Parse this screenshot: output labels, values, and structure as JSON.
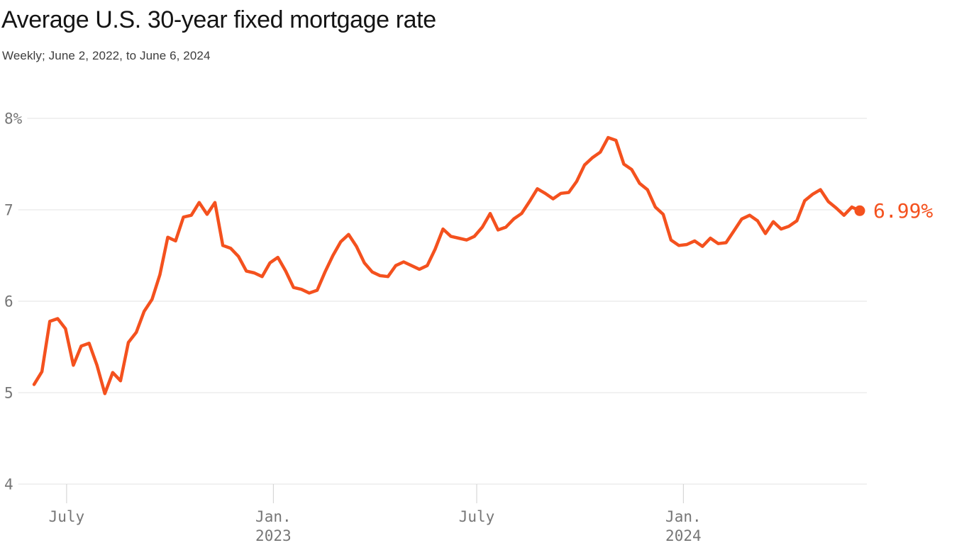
{
  "header": {
    "title": "Average U.S. 30-year fixed mortgage rate",
    "subtitle": "Weekly; June 2, 2022, to June 6, 2024"
  },
  "chart_data": {
    "type": "line",
    "title": "Average U.S. 30-year fixed mortgage rate",
    "subtitle": "Weekly; June 2, 2022, to June 6, 2024",
    "frequency": "weekly",
    "x_range": [
      "June 2, 2022",
      "June 6, 2024"
    ],
    "unit": "%",
    "ylim": [
      4,
      8
    ],
    "grid": "horizontal",
    "legend": "none",
    "line_color": "#F4511E",
    "end_label": "6.99%",
    "end_value": 6.99,
    "values": [
      5.09,
      5.23,
      5.78,
      5.81,
      5.7,
      5.3,
      5.51,
      5.54,
      5.3,
      4.99,
      5.22,
      5.13,
      5.55,
      5.66,
      5.89,
      6.02,
      6.29,
      6.7,
      6.66,
      6.92,
      6.94,
      7.08,
      6.95,
      7.08,
      6.61,
      6.58,
      6.49,
      6.33,
      6.31,
      6.27,
      6.42,
      6.48,
      6.33,
      6.15,
      6.13,
      6.09,
      6.12,
      6.32,
      6.5,
      6.65,
      6.73,
      6.6,
      6.42,
      6.32,
      6.28,
      6.27,
      6.39,
      6.43,
      6.39,
      6.35,
      6.39,
      6.57,
      6.79,
      6.71,
      6.69,
      6.67,
      6.71,
      6.81,
      6.96,
      6.78,
      6.81,
      6.9,
      6.96,
      7.09,
      7.23,
      7.18,
      7.12,
      7.18,
      7.19,
      7.31,
      7.49,
      7.57,
      7.63,
      7.79,
      7.76,
      7.5,
      7.44,
      7.29,
      7.22,
      7.03,
      6.95,
      6.67,
      6.61,
      6.62,
      6.66,
      6.6,
      6.69,
      6.63,
      6.64,
      6.77,
      6.9,
      6.94,
      6.88,
      6.74,
      6.87,
      6.79,
      6.82,
      6.88,
      7.1,
      7.17,
      7.22,
      7.09,
      7.02,
      6.94,
      7.03,
      6.99
    ],
    "y_ticks": [
      {
        "value": 8,
        "label": "8%"
      },
      {
        "value": 7,
        "label": "7"
      },
      {
        "value": 6,
        "label": "6"
      },
      {
        "value": 5,
        "label": "5"
      },
      {
        "value": 4,
        "label": "4"
      }
    ],
    "x_ticks": [
      {
        "label": "July",
        "sublabel": "",
        "week": 4.14
      },
      {
        "label": "Jan.",
        "sublabel": "2023",
        "week": 30.43
      },
      {
        "label": "July",
        "sublabel": "",
        "week": 56.29
      },
      {
        "label": "Jan.",
        "sublabel": "2024",
        "week": 82.57
      }
    ]
  }
}
